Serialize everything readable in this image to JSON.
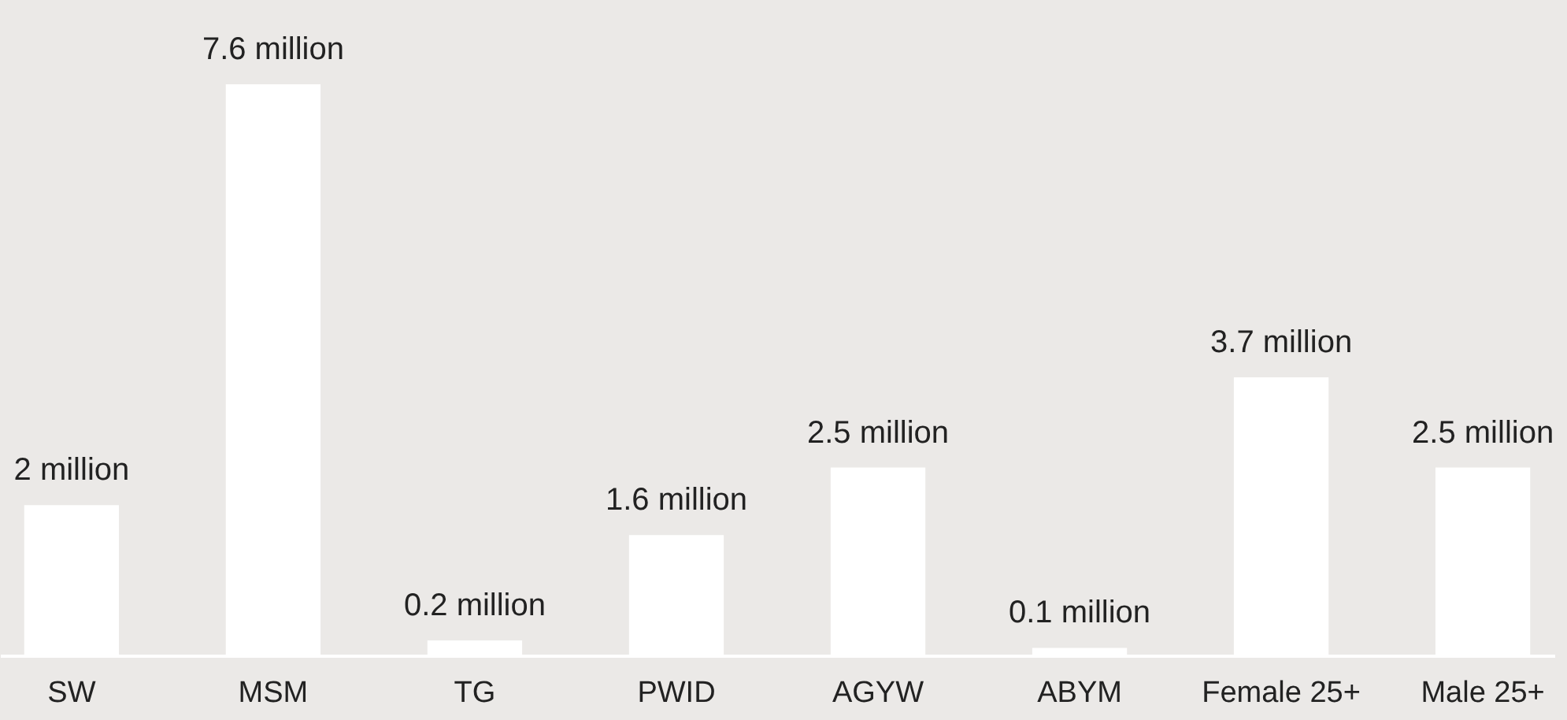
{
  "chart_data": {
    "type": "bar",
    "categories": [
      "SW",
      "MSM",
      "TG",
      "PWID",
      "AGYW",
      "ABYM",
      "Female 25+",
      "Male 25+"
    ],
    "values": [
      2,
      7.6,
      0.2,
      1.6,
      2.5,
      0.1,
      3.7,
      2.5
    ],
    "value_labels": [
      "2 million",
      "7.6 million",
      "0.2 million",
      "1.6 million",
      "2.5 million",
      "0.1 million",
      "3.7 million",
      "2.5 million"
    ],
    "color": "#ffffff"
  }
}
